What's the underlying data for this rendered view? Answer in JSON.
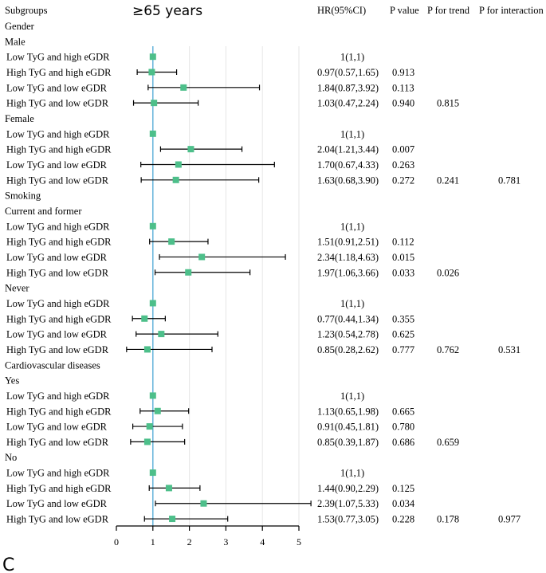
{
  "chart_data": {
    "type": "forest",
    "title": "≥65 years",
    "panel_label": "C",
    "headers": {
      "subgroups": "Subgroups",
      "hr": "HR(95%CI)",
      "p_value": "P value",
      "p_trend": "P for trend",
      "p_interaction": "P for interaction"
    },
    "x_axis": {
      "min": 0,
      "max": 5,
      "ticks": [
        0,
        1,
        2,
        3,
        4,
        5
      ],
      "reference": 1
    },
    "rows": [
      {
        "kind": "section",
        "label": "Gender"
      },
      {
        "kind": "group",
        "label": "Male"
      },
      {
        "kind": "item",
        "label": "Low TyG and high eGDR",
        "hr": 1,
        "lo": 1,
        "hi": 1,
        "hr_text": "1(1,1)",
        "p": "",
        "trend": "",
        "interaction": ""
      },
      {
        "kind": "item",
        "label": "High TyG and high eGDR",
        "hr": 0.97,
        "lo": 0.57,
        "hi": 1.65,
        "hr_text": "0.97(0.57,1.65)",
        "p": "0.913",
        "trend": "",
        "interaction": ""
      },
      {
        "kind": "item",
        "label": "Low TyG and low eGDR",
        "hr": 1.84,
        "lo": 0.87,
        "hi": 3.92,
        "hr_text": "1.84(0.87,3.92)",
        "p": "0.113",
        "trend": "",
        "interaction": ""
      },
      {
        "kind": "item",
        "label": "High TyG and low eGDR",
        "hr": 1.03,
        "lo": 0.47,
        "hi": 2.24,
        "hr_text": "1.03(0.47,2.24)",
        "p": "0.940",
        "trend": "0.815",
        "interaction": ""
      },
      {
        "kind": "group",
        "label": "Female"
      },
      {
        "kind": "item",
        "label": "Low TyG and high eGDR",
        "hr": 1,
        "lo": 1,
        "hi": 1,
        "hr_text": "1(1,1)",
        "p": "",
        "trend": "",
        "interaction": ""
      },
      {
        "kind": "item",
        "label": "High TyG and high eGDR",
        "hr": 2.04,
        "lo": 1.21,
        "hi": 3.44,
        "hr_text": "2.04(1.21,3.44)",
        "p": "0.007",
        "trend": "",
        "interaction": ""
      },
      {
        "kind": "item",
        "label": "Low TyG and low eGDR",
        "hr": 1.7,
        "lo": 0.67,
        "hi": 4.33,
        "hr_text": "1.70(0.67,4.33)",
        "p": "0.263",
        "trend": "",
        "interaction": ""
      },
      {
        "kind": "item",
        "label": "High TyG and low eGDR",
        "hr": 1.63,
        "lo": 0.68,
        "hi": 3.9,
        "hr_text": "1.63(0.68,3.90)",
        "p": "0.272",
        "trend": "0.241",
        "interaction": "0.781"
      },
      {
        "kind": "section",
        "label": "Smoking"
      },
      {
        "kind": "group",
        "label": "Current and former"
      },
      {
        "kind": "item",
        "label": "Low TyG and high eGDR",
        "hr": 1,
        "lo": 1,
        "hi": 1,
        "hr_text": "1(1,1)",
        "p": "",
        "trend": "",
        "interaction": ""
      },
      {
        "kind": "item",
        "label": "High TyG and high eGDR",
        "hr": 1.51,
        "lo": 0.91,
        "hi": 2.51,
        "hr_text": "1.51(0.91,2.51)",
        "p": "0.112",
        "trend": "",
        "interaction": ""
      },
      {
        "kind": "item",
        "label": "Low TyG and low eGDR",
        "hr": 2.34,
        "lo": 1.18,
        "hi": 4.63,
        "hr_text": "2.34(1.18,4.63)",
        "p": "0.015",
        "trend": "",
        "interaction": ""
      },
      {
        "kind": "item",
        "label": "High TyG and low eGDR",
        "hr": 1.97,
        "lo": 1.06,
        "hi": 3.66,
        "hr_text": "1.97(1.06,3.66)",
        "p": "0.033",
        "trend": "0.026",
        "interaction": ""
      },
      {
        "kind": "group",
        "label": "Never"
      },
      {
        "kind": "item",
        "label": "Low TyG and high eGDR",
        "hr": 1,
        "lo": 1,
        "hi": 1,
        "hr_text": "1(1,1)",
        "p": "",
        "trend": "",
        "interaction": ""
      },
      {
        "kind": "item",
        "label": "High TyG and high eGDR",
        "hr": 0.77,
        "lo": 0.44,
        "hi": 1.34,
        "hr_text": "0.77(0.44,1.34)",
        "p": "0.355",
        "trend": "",
        "interaction": ""
      },
      {
        "kind": "item",
        "label": "Low TyG and low eGDR",
        "hr": 1.23,
        "lo": 0.54,
        "hi": 2.78,
        "hr_text": "1.23(0.54,2.78)",
        "p": "0.625",
        "trend": "",
        "interaction": ""
      },
      {
        "kind": "item",
        "label": "High TyG and low eGDR",
        "hr": 0.85,
        "lo": 0.28,
        "hi": 2.62,
        "hr_text": "0.85(0.28,2.62)",
        "p": "0.777",
        "trend": "0.762",
        "interaction": "0.531"
      },
      {
        "kind": "section",
        "label": "Cardiovascular diseases"
      },
      {
        "kind": "group",
        "label": "Yes"
      },
      {
        "kind": "item",
        "label": "Low TyG and high eGDR",
        "hr": 1,
        "lo": 1,
        "hi": 1,
        "hr_text": "1(1,1)",
        "p": "",
        "trend": "",
        "interaction": ""
      },
      {
        "kind": "item",
        "label": "High TyG and high eGDR",
        "hr": 1.13,
        "lo": 0.65,
        "hi": 1.98,
        "hr_text": "1.13(0.65,1.98)",
        "p": "0.665",
        "trend": "",
        "interaction": ""
      },
      {
        "kind": "item",
        "label": "Low TyG and low eGDR",
        "hr": 0.91,
        "lo": 0.45,
        "hi": 1.81,
        "hr_text": "0.91(0.45,1.81)",
        "p": "0.780",
        "trend": "",
        "interaction": ""
      },
      {
        "kind": "item",
        "label": "High TyG and low eGDR",
        "hr": 0.85,
        "lo": 0.39,
        "hi": 1.87,
        "hr_text": "0.85(0.39,1.87)",
        "p": "0.686",
        "trend": "0.659",
        "interaction": ""
      },
      {
        "kind": "group",
        "label": "No"
      },
      {
        "kind": "item",
        "label": "Low TyG and high eGDR",
        "hr": 1,
        "lo": 1,
        "hi": 1,
        "hr_text": "1(1,1)",
        "p": "",
        "trend": "",
        "interaction": ""
      },
      {
        "kind": "item",
        "label": "High TyG and high eGDR",
        "hr": 1.44,
        "lo": 0.9,
        "hi": 2.29,
        "hr_text": "1.44(0.90,2.29)",
        "p": "0.125",
        "trend": "",
        "interaction": ""
      },
      {
        "kind": "item",
        "label": "Low TyG and low eGDR",
        "hr": 2.39,
        "lo": 1.07,
        "hi": 5.33,
        "hr_text": "2.39(1.07,5.33)",
        "p": "0.034",
        "trend": "",
        "interaction": ""
      },
      {
        "kind": "item",
        "label": "High TyG and low eGDR",
        "hr": 1.53,
        "lo": 0.77,
        "hi": 3.05,
        "hr_text": "1.53(0.77,3.05)",
        "p": "0.228",
        "trend": "0.178",
        "interaction": "0.977"
      }
    ],
    "colors": {
      "marker": "#4dbf8a",
      "reference_line": "#5aaed8",
      "ci_line": "#000000",
      "gridline": "#e6e6e6",
      "text": "#000000"
    }
  }
}
